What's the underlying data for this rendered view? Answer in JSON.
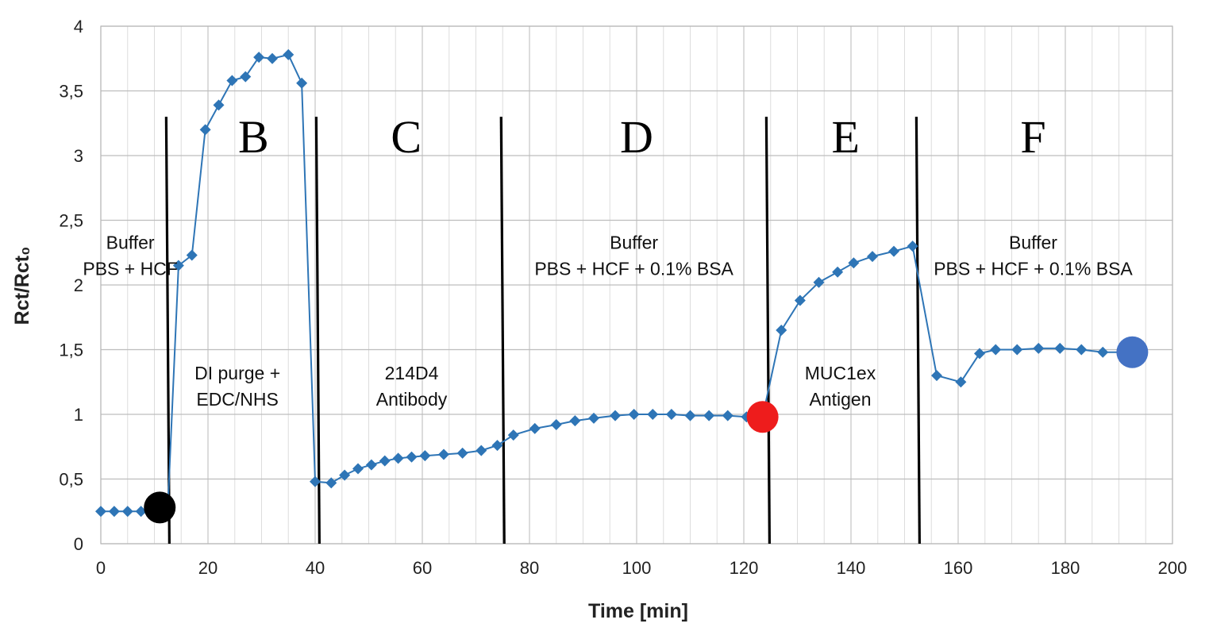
{
  "chart_data": {
    "type": "line",
    "xlabel": "Time [min]",
    "ylabel": "Rct/Rct₀",
    "xlim": [
      0,
      200
    ],
    "ylim": [
      0,
      4
    ],
    "x_ticks": [
      0,
      20,
      40,
      60,
      80,
      100,
      120,
      140,
      160,
      180,
      200
    ],
    "y_ticks": [
      0,
      0.5,
      1,
      1.5,
      2,
      2.5,
      3,
      3.5,
      4
    ],
    "x_tick_labels": [
      "0",
      "20",
      "40",
      "60",
      "80",
      "100",
      "120",
      "140",
      "160",
      "180",
      "200"
    ],
    "y_tick_labels": [
      "0",
      "0,5",
      "1",
      "1,5",
      "2",
      "2,5",
      "3",
      "3,5",
      "4"
    ],
    "grid": true,
    "series": [
      {
        "color": "#2e75b6",
        "marker": "diamond",
        "points": [
          [
            0,
            0.25
          ],
          [
            2.5,
            0.25
          ],
          [
            5,
            0.25
          ],
          [
            7.5,
            0.25
          ],
          [
            11,
            0.28
          ],
          [
            12.5,
            0.28
          ],
          [
            14.5,
            2.15
          ],
          [
            17,
            2.23
          ],
          [
            19.5,
            3.2
          ],
          [
            22,
            3.39
          ],
          [
            24.5,
            3.58
          ],
          [
            27,
            3.61
          ],
          [
            29.5,
            3.76
          ],
          [
            32,
            3.75
          ],
          [
            35,
            3.78
          ],
          [
            37.5,
            3.56
          ],
          [
            40,
            0.48
          ],
          [
            43,
            0.47
          ],
          [
            45.5,
            0.53
          ],
          [
            48,
            0.58
          ],
          [
            50.5,
            0.61
          ],
          [
            53,
            0.64
          ],
          [
            55.5,
            0.66
          ],
          [
            58,
            0.67
          ],
          [
            60.5,
            0.68
          ],
          [
            64,
            0.69
          ],
          [
            67.5,
            0.7
          ],
          [
            71,
            0.72
          ],
          [
            74,
            0.76
          ],
          [
            77,
            0.84
          ],
          [
            81,
            0.89
          ],
          [
            85,
            0.92
          ],
          [
            88.5,
            0.95
          ],
          [
            92,
            0.97
          ],
          [
            96,
            0.99
          ],
          [
            99.5,
            1.0
          ],
          [
            103,
            1.0
          ],
          [
            106.5,
            1.0
          ],
          [
            110,
            0.99
          ],
          [
            113.5,
            0.99
          ],
          [
            117,
            0.99
          ],
          [
            120.5,
            0.98
          ],
          [
            123.5,
            0.98
          ],
          [
            127,
            1.65
          ],
          [
            130.5,
            1.88
          ],
          [
            134,
            2.02
          ],
          [
            137.5,
            2.1
          ],
          [
            140.5,
            2.17
          ],
          [
            144,
            2.22
          ],
          [
            148,
            2.26
          ],
          [
            151.5,
            2.3
          ],
          [
            156,
            1.3
          ],
          [
            160.5,
            1.25
          ],
          [
            164,
            1.47
          ],
          [
            167,
            1.5
          ],
          [
            171,
            1.5
          ],
          [
            175,
            1.51
          ],
          [
            179,
            1.51
          ],
          [
            183,
            1.5
          ],
          [
            187,
            1.48
          ],
          [
            192.5,
            1.48
          ]
        ]
      }
    ],
    "highlight_points": [
      {
        "x": 11,
        "y": 0.28,
        "color": "#000000"
      },
      {
        "x": 123.5,
        "y": 0.98,
        "color": "#ee1c1c"
      },
      {
        "x": 192.5,
        "y": 1.48,
        "color": "#4472c4"
      }
    ],
    "phase_boundaries": [
      12.5,
      40.5,
      75,
      124.5,
      152.5
    ],
    "phase_letters": [
      {
        "label": "B",
        "x": 28.5
      },
      {
        "label": "C",
        "x": 57
      },
      {
        "label": "D",
        "x": 100
      },
      {
        "label": "E",
        "x": 139
      },
      {
        "label": "F",
        "x": 174
      }
    ],
    "annotations": [
      {
        "lines": [
          "Buffer",
          "PBS + HCF"
        ],
        "x": 5.5,
        "y": 2.28
      },
      {
        "lines": [
          "DI purge +",
          "EDC/NHS"
        ],
        "x": 25.5,
        "y": 1.27
      },
      {
        "lines": [
          "214D4",
          "Antibody"
        ],
        "x": 58,
        "y": 1.27
      },
      {
        "lines": [
          "Buffer",
          "PBS + HCF + 0.1% BSA"
        ],
        "x": 99.5,
        "y": 2.28
      },
      {
        "lines": [
          "MUC1ex",
          "Antigen"
        ],
        "x": 138,
        "y": 1.27
      },
      {
        "lines": [
          "Buffer",
          "PBS + HCF + 0.1% BSA"
        ],
        "x": 174,
        "y": 2.28
      }
    ]
  }
}
